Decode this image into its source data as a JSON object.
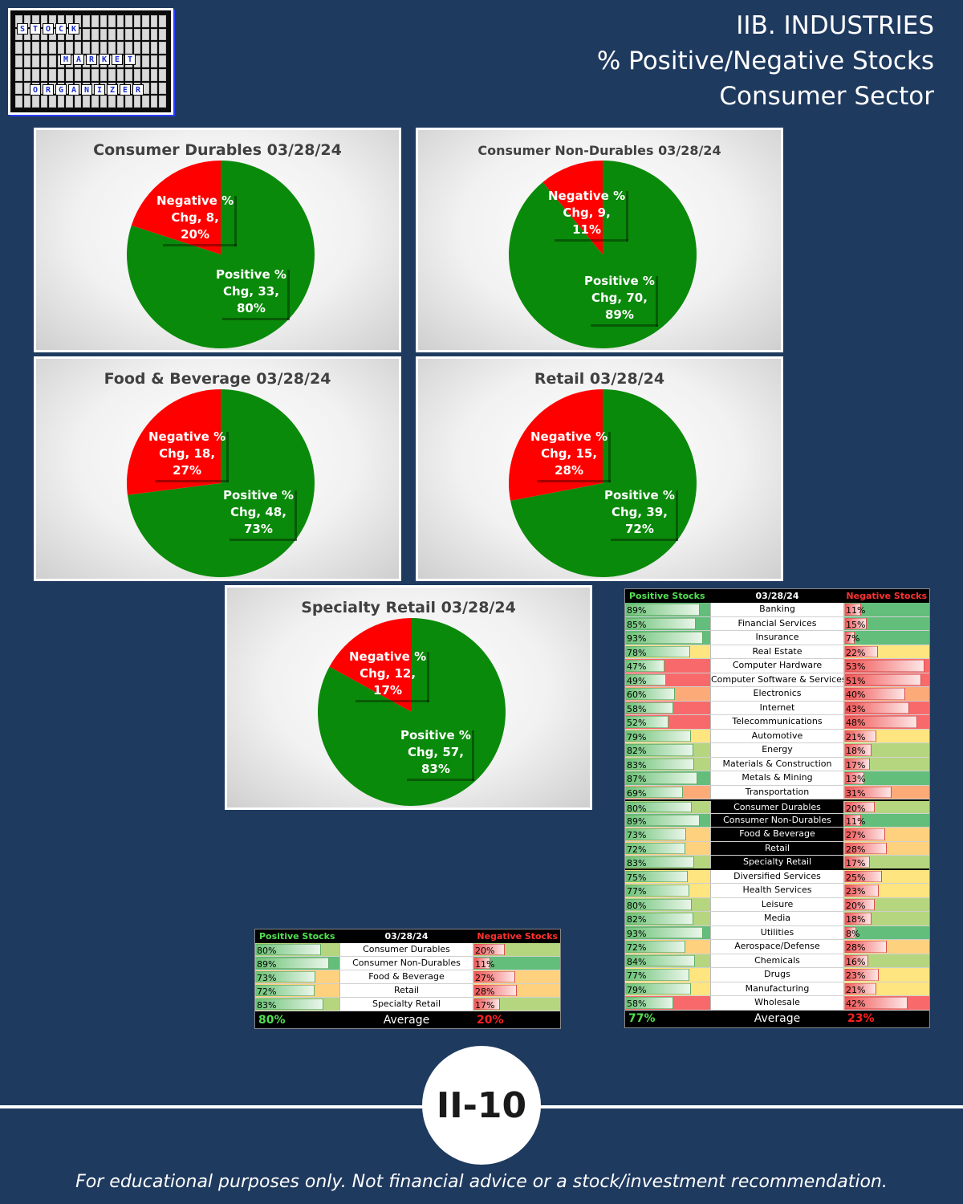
{
  "logo": {
    "words": [
      "STOCK",
      "MARKET",
      "ORGANIZER"
    ]
  },
  "header": {
    "line1": "IIB. INDUSTRIES",
    "line2": "% Positive/Negative Stocks",
    "line3": "Consumer Sector"
  },
  "colors": {
    "background": "#1f3a5f",
    "positive": "#0a8a0a",
    "negative": "#ff0000"
  },
  "chart_data": [
    {
      "type": "pie",
      "title": "Consumer Durables 03/28/24",
      "slices": [
        {
          "label": "Positive % Chg",
          "count": 33,
          "pct": "80%",
          "value": 80
        },
        {
          "label": "Negative % Chg",
          "count": 8,
          "pct": "20%",
          "value": 20
        }
      ]
    },
    {
      "type": "pie",
      "title": "Consumer Non-Durables 03/28/24",
      "slices": [
        {
          "label": "Positive % Chg",
          "count": 70,
          "pct": "89%",
          "value": 89
        },
        {
          "label": "Negative % Chg",
          "count": 9,
          "pct": "11%",
          "value": 11
        }
      ]
    },
    {
      "type": "pie",
      "title": "Food & Beverage 03/28/24",
      "slices": [
        {
          "label": "Positive % Chg",
          "count": 48,
          "pct": "73%",
          "value": 73
        },
        {
          "label": "Negative % Chg",
          "count": 18,
          "pct": "27%",
          "value": 27
        }
      ]
    },
    {
      "type": "pie",
      "title": "Retail 03/28/24",
      "slices": [
        {
          "label": "Positive % Chg",
          "count": 39,
          "pct": "72%",
          "value": 72
        },
        {
          "label": "Negative % Chg",
          "count": 15,
          "pct": "28%",
          "value": 28
        }
      ]
    },
    {
      "type": "pie",
      "title": "Specialty Retail 03/28/24",
      "slices": [
        {
          "label": "Positive % Chg",
          "count": 57,
          "pct": "83%",
          "value": 83
        },
        {
          "label": "Negative % Chg",
          "count": 12,
          "pct": "17%",
          "value": 17
        }
      ]
    }
  ],
  "small_table": {
    "header_pos": "Positive Stocks %",
    "header_date": "03/28/24",
    "header_neg": "Negative Stocks %",
    "rows": [
      {
        "name": "Consumer Durables",
        "pos": 80,
        "neg": 20
      },
      {
        "name": "Consumer Non-Durables",
        "pos": 89,
        "neg": 11
      },
      {
        "name": "Food & Beverage",
        "pos": 73,
        "neg": 27
      },
      {
        "name": "Retail",
        "pos": 72,
        "neg": 28
      },
      {
        "name": "Specialty Retail",
        "pos": 83,
        "neg": 17
      }
    ],
    "avg_pos": "80%",
    "avg_label": "Average",
    "avg_neg": "20%"
  },
  "big_table": {
    "header_pos": "Positive Stocks %",
    "header_date": "03/28/24",
    "header_neg": "Negative Stocks %",
    "rows": [
      {
        "name": "Banking",
        "pos": 89,
        "neg": 11
      },
      {
        "name": "Financial Services",
        "pos": 85,
        "neg": 15
      },
      {
        "name": "Insurance",
        "pos": 93,
        "neg": 7
      },
      {
        "name": "Real Estate",
        "pos": 78,
        "neg": 22
      },
      {
        "name": "Computer Hardware",
        "pos": 47,
        "neg": 53
      },
      {
        "name": "Computer Software & Services",
        "pos": 49,
        "neg": 51
      },
      {
        "name": "Electronics",
        "pos": 60,
        "neg": 40
      },
      {
        "name": "Internet",
        "pos": 58,
        "neg": 43
      },
      {
        "name": "Telecommunications",
        "pos": 52,
        "neg": 48
      },
      {
        "name": "Automotive",
        "pos": 79,
        "neg": 21
      },
      {
        "name": "Energy",
        "pos": 82,
        "neg": 18
      },
      {
        "name": "Materials & Construction",
        "pos": 83,
        "neg": 17
      },
      {
        "name": "Metals & Mining",
        "pos": 87,
        "neg": 13
      },
      {
        "name": "Transportation",
        "pos": 69,
        "neg": 31
      },
      {
        "name": "Consumer Durables",
        "pos": 80,
        "neg": 20,
        "highlight": true
      },
      {
        "name": "Consumer Non-Durables",
        "pos": 89,
        "neg": 11,
        "highlight": true
      },
      {
        "name": "Food & Beverage",
        "pos": 73,
        "neg": 27,
        "highlight": true
      },
      {
        "name": "Retail",
        "pos": 72,
        "neg": 28,
        "highlight": true
      },
      {
        "name": "Specialty Retail",
        "pos": 83,
        "neg": 17,
        "highlight": true
      },
      {
        "name": "Diversified Services",
        "pos": 75,
        "neg": 25
      },
      {
        "name": "Health Services",
        "pos": 77,
        "neg": 23
      },
      {
        "name": "Leisure",
        "pos": 80,
        "neg": 20
      },
      {
        "name": "Media",
        "pos": 82,
        "neg": 18
      },
      {
        "name": "Utilities",
        "pos": 93,
        "neg": 8
      },
      {
        "name": "Aerospace/Defense",
        "pos": 72,
        "neg": 28
      },
      {
        "name": "Chemicals",
        "pos": 84,
        "neg": 16
      },
      {
        "name": "Drugs",
        "pos": 77,
        "neg": 23
      },
      {
        "name": "Manufacturing",
        "pos": 79,
        "neg": 21
      },
      {
        "name": "Wholesale",
        "pos": 58,
        "neg": 42
      }
    ],
    "avg_pos": "77%",
    "avg_label": "Average",
    "avg_neg": "23%"
  },
  "page_number": "II-10",
  "disclaimer": "For educational purposes only. Not financial advice or a stock/investment recommendation."
}
